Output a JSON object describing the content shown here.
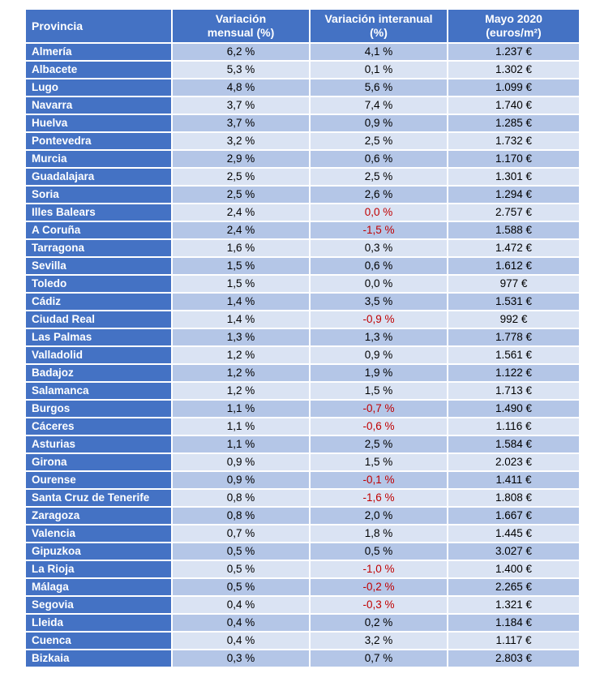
{
  "colors": {
    "header_bg": "#4472c4",
    "band_dark": "#b4c6e7",
    "band_light": "#dae3f3",
    "highlight_text": "#c00000"
  },
  "headers": {
    "provincia": "Provincia",
    "mensual_line1": "Variación",
    "mensual_line2": "mensual (%)",
    "interanual_line1": "Variación interanual",
    "interanual_line2": "(%)",
    "price_line1": "Mayo 2020",
    "price_line2": "(euros/m²)"
  },
  "rows": [
    {
      "provincia": "Almería",
      "mensual": "6,2 %",
      "interanual": "4,1 %",
      "precio": "1.237 €"
    },
    {
      "provincia": "Albacete",
      "mensual": "5,3 %",
      "interanual": "0,1 %",
      "precio": "1.302 €"
    },
    {
      "provincia": "Lugo",
      "mensual": "4,8 %",
      "interanual": "5,6 %",
      "precio": "1.099 €"
    },
    {
      "provincia": "Navarra",
      "mensual": "3,7 %",
      "interanual": "7,4 %",
      "precio": "1.740 €"
    },
    {
      "provincia": "Huelva",
      "mensual": "3,7 %",
      "interanual": "0,9 %",
      "precio": "1.285 €"
    },
    {
      "provincia": "Pontevedra",
      "mensual": "3,2 %",
      "interanual": "2,5 %",
      "precio": "1.732 €"
    },
    {
      "provincia": "Murcia",
      "mensual": "2,9 %",
      "interanual": "0,6 %",
      "precio": "1.170 €"
    },
    {
      "provincia": "Guadalajara",
      "mensual": "2,5 %",
      "interanual": "2,5 %",
      "precio": "1.301 €"
    },
    {
      "provincia": "Soria",
      "mensual": "2,5 %",
      "interanual": "2,6 %",
      "precio": "1.294 €"
    },
    {
      "provincia": "Illes Balears",
      "mensual": "2,4 %",
      "interanual": "0,0 %",
      "precio": "2.757 €",
      "interanual_red": true
    },
    {
      "provincia": "A Coruña",
      "mensual": "2,4 %",
      "interanual": "-1,5 %",
      "precio": "1.588 €",
      "interanual_red": true
    },
    {
      "provincia": "Tarragona",
      "mensual": "1,6 %",
      "interanual": "0,3 %",
      "precio": "1.472 €"
    },
    {
      "provincia": "Sevilla",
      "mensual": "1,5 %",
      "interanual": "0,6 %",
      "precio": "1.612 €"
    },
    {
      "provincia": "Toledo",
      "mensual": "1,5 %",
      "interanual": "0,0 %",
      "precio": "977 €"
    },
    {
      "provincia": "Cádiz",
      "mensual": "1,4 %",
      "interanual": "3,5 %",
      "precio": "1.531 €"
    },
    {
      "provincia": "Ciudad Real",
      "mensual": "1,4 %",
      "interanual": "-0,9 %",
      "precio": "992 €",
      "interanual_red": true
    },
    {
      "provincia": "Las Palmas",
      "mensual": "1,3 %",
      "interanual": "1,3 %",
      "precio": "1.778 €"
    },
    {
      "provincia": "Valladolid",
      "mensual": "1,2 %",
      "interanual": "0,9 %",
      "precio": "1.561 €"
    },
    {
      "provincia": "Badajoz",
      "mensual": "1,2 %",
      "interanual": "1,9 %",
      "precio": "1.122 €"
    },
    {
      "provincia": "Salamanca",
      "mensual": "1,2 %",
      "interanual": "1,5 %",
      "precio": "1.713 €"
    },
    {
      "provincia": "Burgos",
      "mensual": "1,1 %",
      "interanual": "-0,7 %",
      "precio": "1.490 €",
      "interanual_red": true
    },
    {
      "provincia": "Cáceres",
      "mensual": "1,1 %",
      "interanual": "-0,6 %",
      "precio": "1.116 €",
      "interanual_red": true
    },
    {
      "provincia": "Asturias",
      "mensual": "1,1 %",
      "interanual": "2,5 %",
      "precio": "1.584 €"
    },
    {
      "provincia": "Girona",
      "mensual": "0,9 %",
      "interanual": "1,5 %",
      "precio": "2.023 €"
    },
    {
      "provincia": "Ourense",
      "mensual": "0,9 %",
      "interanual": "-0,1 %",
      "precio": "1.411 €",
      "interanual_red": true
    },
    {
      "provincia": "Santa Cruz de Tenerife",
      "mensual": "0,8 %",
      "interanual": "-1,6 %",
      "precio": "1.808 €",
      "interanual_red": true
    },
    {
      "provincia": "Zaragoza",
      "mensual": "0,8 %",
      "interanual": "2,0 %",
      "precio": "1.667 €"
    },
    {
      "provincia": "Valencia",
      "mensual": "0,7 %",
      "interanual": "1,8 %",
      "precio": "1.445 €"
    },
    {
      "provincia": "Gipuzkoa",
      "mensual": "0,5 %",
      "interanual": "0,5 %",
      "precio": "3.027 €"
    },
    {
      "provincia": "La Rioja",
      "mensual": "0,5 %",
      "interanual": "-1,0 %",
      "precio": "1.400 €",
      "interanual_red": true
    },
    {
      "provincia": "Málaga",
      "mensual": "0,5 %",
      "interanual": "-0,2 %",
      "precio": "2.265 €",
      "interanual_red": true
    },
    {
      "provincia": "Segovia",
      "mensual": "0,4 %",
      "interanual": "-0,3 %",
      "precio": "1.321 €",
      "interanual_red": true
    },
    {
      "provincia": "Lleida",
      "mensual": "0,4 %",
      "interanual": "0,2 %",
      "precio": "1.184 €"
    },
    {
      "provincia": "Cuenca",
      "mensual": "0,4 %",
      "interanual": "3,2 %",
      "precio": "1.117 €"
    },
    {
      "provincia": "Bizkaia",
      "mensual": "0,3 %",
      "interanual": "0,7 %",
      "precio": "2.803 €"
    }
  ]
}
